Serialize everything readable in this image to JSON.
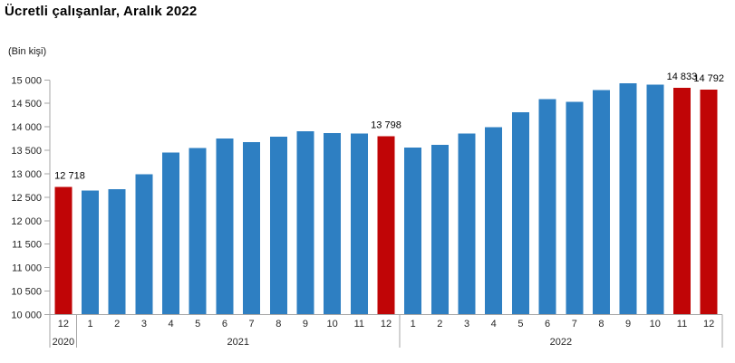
{
  "header": {
    "title": "Ücretli çalışanlar, Aralık 2022",
    "unit_label": "(Bin kişi)"
  },
  "chart_data": {
    "type": "bar",
    "title": "Ücretli çalışanlar, Aralık 2022",
    "ylabel": "(Bin kişi)",
    "xlabel": "",
    "ylim": [
      10000,
      15000
    ],
    "grid": false,
    "legend": "none",
    "y_ticks": [
      {
        "value": 10000,
        "label": "10 000"
      },
      {
        "value": 10500,
        "label": "10 500"
      },
      {
        "value": 11000,
        "label": "11 000"
      },
      {
        "value": 11500,
        "label": "11 500"
      },
      {
        "value": 12000,
        "label": "12 000"
      },
      {
        "value": 12500,
        "label": "12 500"
      },
      {
        "value": 13000,
        "label": "13 000"
      },
      {
        "value": 13500,
        "label": "13 500"
      },
      {
        "value": 14000,
        "label": "14 000"
      },
      {
        "value": 14500,
        "label": "14 500"
      },
      {
        "value": 15000,
        "label": "15 000"
      }
    ],
    "year_groups": [
      {
        "label": "2020",
        "count": 1
      },
      {
        "label": "2021",
        "count": 12
      },
      {
        "label": "2022",
        "count": 12
      }
    ],
    "points": [
      {
        "year": "2020",
        "month": "12",
        "value": 12718,
        "highlight": true,
        "data_label": "12 718"
      },
      {
        "year": "2021",
        "month": "1",
        "value": 12640,
        "highlight": false,
        "data_label": null
      },
      {
        "year": "2021",
        "month": "2",
        "value": 12670,
        "highlight": false,
        "data_label": null
      },
      {
        "year": "2021",
        "month": "3",
        "value": 12990,
        "highlight": false,
        "data_label": null
      },
      {
        "year": "2021",
        "month": "4",
        "value": 13450,
        "highlight": false,
        "data_label": null
      },
      {
        "year": "2021",
        "month": "5",
        "value": 13550,
        "highlight": false,
        "data_label": null
      },
      {
        "year": "2021",
        "month": "6",
        "value": 13750,
        "highlight": false,
        "data_label": null
      },
      {
        "year": "2021",
        "month": "7",
        "value": 13670,
        "highlight": false,
        "data_label": null
      },
      {
        "year": "2021",
        "month": "8",
        "value": 13790,
        "highlight": false,
        "data_label": null
      },
      {
        "year": "2021",
        "month": "9",
        "value": 13910,
        "highlight": false,
        "data_label": null
      },
      {
        "year": "2021",
        "month": "10",
        "value": 13870,
        "highlight": false,
        "data_label": null
      },
      {
        "year": "2021",
        "month": "11",
        "value": 13860,
        "highlight": false,
        "data_label": null
      },
      {
        "year": "2021",
        "month": "12",
        "value": 13798,
        "highlight": true,
        "data_label": "13 798"
      },
      {
        "year": "2022",
        "month": "1",
        "value": 13560,
        "highlight": false,
        "data_label": null
      },
      {
        "year": "2022",
        "month": "2",
        "value": 13620,
        "highlight": false,
        "data_label": null
      },
      {
        "year": "2022",
        "month": "3",
        "value": 13860,
        "highlight": false,
        "data_label": null
      },
      {
        "year": "2022",
        "month": "4",
        "value": 13990,
        "highlight": false,
        "data_label": null
      },
      {
        "year": "2022",
        "month": "5",
        "value": 14310,
        "highlight": false,
        "data_label": null
      },
      {
        "year": "2022",
        "month": "6",
        "value": 14590,
        "highlight": false,
        "data_label": null
      },
      {
        "year": "2022",
        "month": "7",
        "value": 14530,
        "highlight": false,
        "data_label": null
      },
      {
        "year": "2022",
        "month": "8",
        "value": 14780,
        "highlight": false,
        "data_label": null
      },
      {
        "year": "2022",
        "month": "9",
        "value": 14930,
        "highlight": false,
        "data_label": null
      },
      {
        "year": "2022",
        "month": "10",
        "value": 14900,
        "highlight": false,
        "data_label": null
      },
      {
        "year": "2022",
        "month": "11",
        "value": 14833,
        "highlight": true,
        "data_label": "14 833"
      },
      {
        "year": "2022",
        "month": "12",
        "value": 14792,
        "highlight": true,
        "data_label": "14 792"
      }
    ],
    "colors": {
      "bar_default": "#2e7fc2",
      "bar_highlight": "#c00506",
      "axis_line": "#a6a6a6",
      "tick_text": "#262626",
      "value_label_text": "#000000"
    }
  }
}
